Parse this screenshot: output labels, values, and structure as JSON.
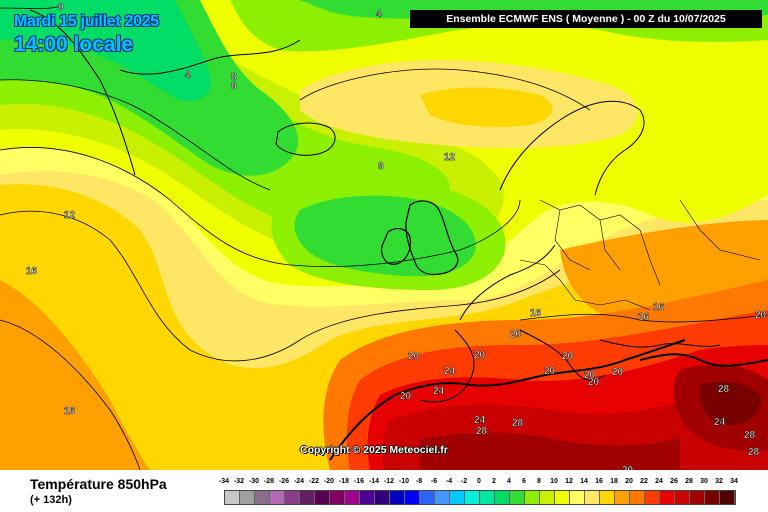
{
  "header": {
    "date": "Mardi 15 juillet 2025",
    "local_time": "14:00 locale",
    "model_run": "Ensemble ECMWF ENS  ( Moyenne )  -  00 Z du 10/07/2025"
  },
  "map": {
    "copyright": "Copyright © 2025 Meteociel.fr",
    "contour_labels": [
      "0",
      "4",
      "4",
      "8",
      "8",
      "8",
      "12",
      "12",
      "16",
      "16",
      "16",
      "16",
      "16",
      "20",
      "20",
      "20",
      "20",
      "20",
      "20",
      "20",
      "20",
      "20",
      "20",
      "24",
      "24",
      "24",
      "24",
      "28",
      "28",
      "28",
      "28",
      "28",
      "20"
    ]
  },
  "legend": {
    "variable": "Température 850hPa",
    "lead_time": "(+ 132h)",
    "scale_values": [
      "-34",
      "-32",
      "-30",
      "-28",
      "-26",
      "-24",
      "-22",
      "-20",
      "-18",
      "-16",
      "-14",
      "-12",
      "-10",
      "-8",
      "-6",
      "-4",
      "-2",
      "0",
      "2",
      "4",
      "6",
      "8",
      "10",
      "12",
      "14",
      "16",
      "18",
      "20",
      "22",
      "24",
      "26",
      "28",
      "30",
      "32",
      "34"
    ],
    "scale_colors": [
      "#c8c8c8",
      "#a0a0a0",
      "#8c6e8c",
      "#b469b4",
      "#8c3c8c",
      "#641e64",
      "#5a0050",
      "#820064",
      "#a0008c",
      "#4b0096",
      "#32007d",
      "#0000be",
      "#0000ff",
      "#2d64ff",
      "#4696ff",
      "#00c8ff",
      "#00f0dc",
      "#00e6a0",
      "#00dc64",
      "#32dc32",
      "#8cf000",
      "#c8f000",
      "#f0ff00",
      "#ffff64",
      "#ffe664",
      "#ffd700",
      "#ffa000",
      "#ff7800",
      "#ff3c00",
      "#e60000",
      "#c80000",
      "#a00000",
      "#780000",
      "#500000"
    ]
  }
}
